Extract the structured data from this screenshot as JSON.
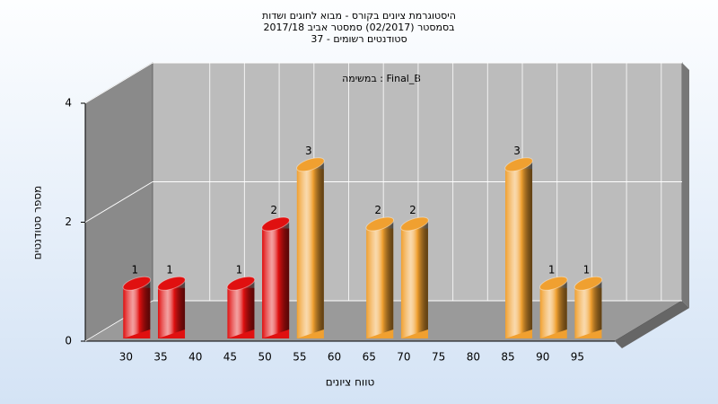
{
  "chart_data": {
    "type": "bar",
    "title": [
      "היסטוגרמת ציונים בקורס - מבוא לחוגים ושדות",
      "בסמסטר (02/2017) סמסטר אביב 2017/18",
      "סטודנטים רשומים - 37"
    ],
    "annotation": "במשימה : Final_B",
    "x_label": "טווח ציונים",
    "y_label": "מספר סטודנטים",
    "categories": [
      "30",
      "35",
      "40",
      "45",
      "50",
      "55",
      "60",
      "65",
      "70",
      "75",
      "80",
      "85",
      "90",
      "95"
    ],
    "values": [
      1,
      1,
      null,
      1,
      2,
      3,
      null,
      2,
      2,
      null,
      null,
      3,
      1,
      1
    ],
    "colors": [
      "#e01010",
      "#e01010",
      "#e01010",
      "#e01010",
      "#e01010",
      "#f0a030",
      "#f0a030",
      "#f0a030",
      "#f0a030",
      "#f0a030",
      "#f0a030",
      "#f0a030",
      "#f0a030",
      "#f0a030"
    ],
    "ylim": [
      0,
      4
    ],
    "yticks": [
      0,
      2,
      4
    ],
    "grid": true
  }
}
